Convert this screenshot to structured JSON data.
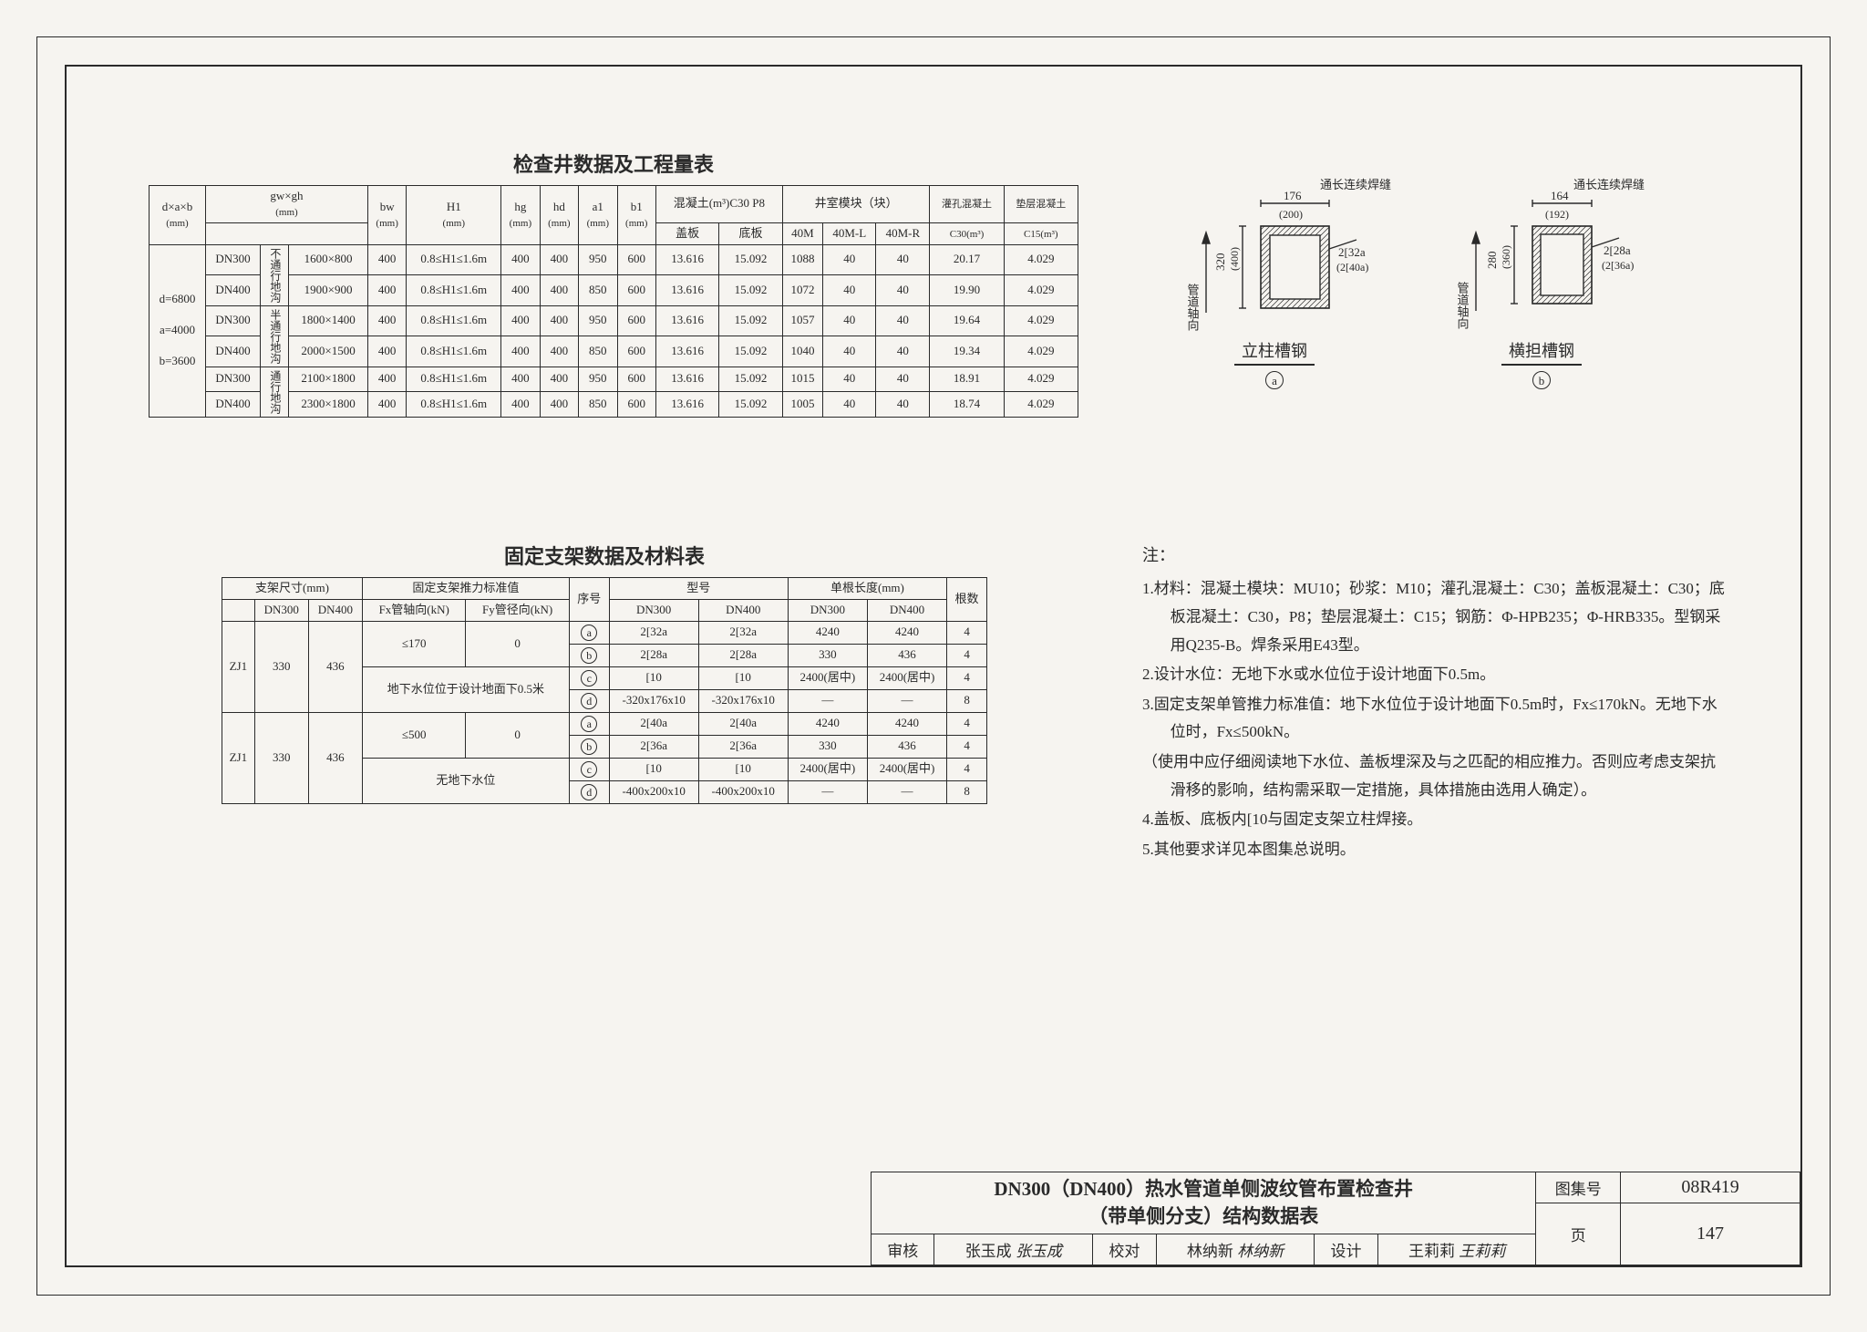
{
  "colors": {
    "ink": "#2a2a2a",
    "paper": "#f6f4f0"
  },
  "table1": {
    "title": "检查井数据及工程量表",
    "head": {
      "c0a": "d×a×b",
      "c0b": "(mm)",
      "c1a": "gw×gh",
      "c1b": "(mm)",
      "c2a": "bw",
      "c2b": "(mm)",
      "c3a": "H1",
      "c3b": "(mm)",
      "c4a": "hg",
      "c4b": "(mm)",
      "c5a": "hd",
      "c5b": "(mm)",
      "c6a": "a1",
      "c6b": "(mm)",
      "c7a": "b1",
      "c7b": "(mm)",
      "g1": "混凝土(m³)C30 P8",
      "g1a": "盖板",
      "g1b": "底板",
      "g2": "井室模块（块）",
      "g2a": "40M",
      "g2b": "40M-L",
      "g2c": "40M-R",
      "g3a": "灌孔混凝土",
      "g3b": "垫层混凝土",
      "g3a2": "C30(m³)",
      "g3b2": "C15(m³)"
    },
    "leftgroup": {
      "l1": "d=6800",
      "l2": "a=4000",
      "l3": "b=3600"
    },
    "subrows": [
      "DN300",
      "DN400",
      "DN300",
      "DN400",
      "DN300",
      "DN400"
    ],
    "rowgroups": [
      "不通行地沟",
      "半通行地沟",
      "通行地沟"
    ],
    "rows": [
      [
        "1600×800",
        "400",
        "0.8≤H1≤1.6m",
        "400",
        "400",
        "950",
        "600",
        "13.616",
        "15.092",
        "1088",
        "40",
        "40",
        "20.17",
        "4.029"
      ],
      [
        "1900×900",
        "400",
        "0.8≤H1≤1.6m",
        "400",
        "400",
        "850",
        "600",
        "13.616",
        "15.092",
        "1072",
        "40",
        "40",
        "19.90",
        "4.029"
      ],
      [
        "1800×1400",
        "400",
        "0.8≤H1≤1.6m",
        "400",
        "400",
        "950",
        "600",
        "13.616",
        "15.092",
        "1057",
        "40",
        "40",
        "19.64",
        "4.029"
      ],
      [
        "2000×1500",
        "400",
        "0.8≤H1≤1.6m",
        "400",
        "400",
        "850",
        "600",
        "13.616",
        "15.092",
        "1040",
        "40",
        "40",
        "19.34",
        "4.029"
      ],
      [
        "2100×1800",
        "400",
        "0.8≤H1≤1.6m",
        "400",
        "400",
        "950",
        "600",
        "13.616",
        "15.092",
        "1015",
        "40",
        "40",
        "18.91",
        "4.029"
      ],
      [
        "2300×1800",
        "400",
        "0.8≤H1≤1.6m",
        "400",
        "400",
        "850",
        "600",
        "13.616",
        "15.092",
        "1005",
        "40",
        "40",
        "18.74",
        "4.029"
      ]
    ]
  },
  "table2": {
    "title": "固定支架数据及材料表",
    "head": {
      "g0": "支架尺寸(mm)",
      "g0a": "DN300",
      "g0b": "DN400",
      "g1": "固定支架推力标准值",
      "g1a": "Fx管轴向(kN)",
      "g1b": "Fy管径向(kN)",
      "seq": "序号",
      "g2": "型号",
      "g2a": "DN300",
      "g2b": "DN400",
      "g3": "单根长度(mm)",
      "g3a": "DN300",
      "g3b": "DN400",
      "cnt": "根数"
    },
    "blocks": [
      {
        "name": "ZJ1",
        "dn300": "330",
        "dn400": "436",
        "hx": "≤170",
        "hy": "0",
        "cond": "地下水位位于设计地面下0.5米",
        "rows": [
          {
            "tag": "a",
            "m300": "2[32a",
            "m400": "2[32a",
            "l300": "4240",
            "l400": "4240",
            "n": "4"
          },
          {
            "tag": "b",
            "m300": "2[28a",
            "m400": "2[28a",
            "l300": "330",
            "l400": "436",
            "n": "4"
          },
          {
            "tag": "c",
            "m300": "[10",
            "m400": "[10",
            "l300": "2400(居中)",
            "l400": "2400(居中)",
            "n": "4"
          },
          {
            "tag": "d",
            "m300": "-320x176x10",
            "m400": "-320x176x10",
            "l300": "—",
            "l400": "—",
            "n": "8"
          }
        ]
      },
      {
        "name": "ZJ1",
        "dn300": "330",
        "dn400": "436",
        "hx": "≤500",
        "hy": "0",
        "cond": "无地下水位",
        "rows": [
          {
            "tag": "a",
            "m300": "2[40a",
            "m400": "2[40a",
            "l300": "4240",
            "l400": "4240",
            "n": "4"
          },
          {
            "tag": "b",
            "m300": "2[36a",
            "m400": "2[36a",
            "l300": "330",
            "l400": "436",
            "n": "4"
          },
          {
            "tag": "c",
            "m300": "[10",
            "m400": "[10",
            "l300": "2400(居中)",
            "l400": "2400(居中)",
            "n": "4"
          },
          {
            "tag": "d",
            "m300": "-400x200x10",
            "m400": "-400x200x10",
            "l300": "—",
            "l400": "—",
            "n": "8"
          }
        ]
      }
    ]
  },
  "diagrams": {
    "a": {
      "weld": "通长连续焊缝",
      "top_dim": "176",
      "top_dim2": "(200)",
      "side_dim": "320",
      "side_dim2": "(400)",
      "right1": "2[32a",
      "right2": "(2[40a)",
      "axis": "管道轴向",
      "label": "立柱槽钢",
      "tag": "a"
    },
    "b": {
      "weld": "通长连续焊缝",
      "top_dim": "164",
      "top_dim2": "(192)",
      "side_dim": "280",
      "side_dim2": "(360)",
      "right1": "2[28a",
      "right2": "(2[36a)",
      "axis": "管道轴向",
      "label": "横担槽钢",
      "tag": "b"
    }
  },
  "notes": {
    "header": "注：",
    "items": [
      "1.材料：混凝土模块：MU10；砂浆：M10；灌孔混凝土：C30；盖板混凝土：C30；底板混凝土：C30，P8；垫层混凝土：C15；钢筋：Φ-HPB235；Φ-HRB335。型钢采用Q235-B。焊条采用E43型。",
      "2.设计水位：无地下水或水位位于设计地面下0.5m。",
      "3.固定支架单管推力标准值：地下水位位于设计地面下0.5m时，Fx≤170kN。无地下水位时，Fx≤500kN。",
      "（使用中应仔细阅读地下水位、盖板埋深及与之匹配的相应推力。否则应考虑支架抗滑移的影响，结构需采取一定措施，具体措施由选用人确定）。",
      "4.盖板、底板内[10与固定支架立柱焊接。",
      "5.其他要求详见本图集总说明。"
    ]
  },
  "titleblock": {
    "main1": "DN300（DN400）热水管道单侧波纹管布置检查井",
    "main2": "（带单侧分支）结构数据表",
    "label_set": "图集号",
    "setno": "08R419",
    "reviewer_l": "审核",
    "reviewer": "张玉成",
    "reviewer_sig": "张玉成",
    "checker_l": "校对",
    "checker": "林纳新",
    "checker_sig": "林纳新",
    "designer_l": "设计",
    "designer": "王莉莉",
    "designer_sig": "王莉莉",
    "page_l": "页",
    "page": "147"
  }
}
